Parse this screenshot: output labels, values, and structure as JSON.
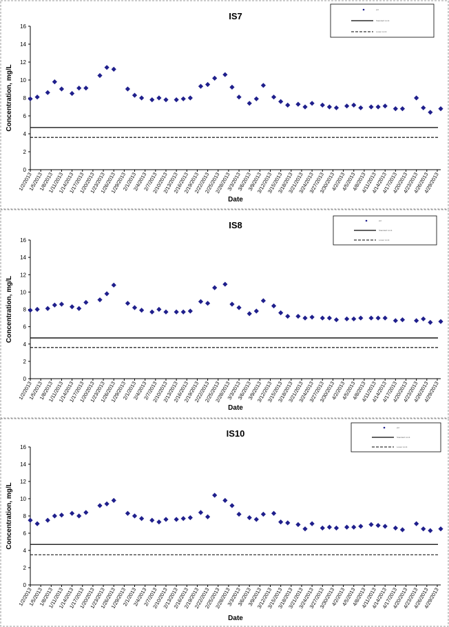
{
  "colors": {
    "marker": "#1f1f8c",
    "axis": "#000000",
    "border": "#9a9a9a"
  },
  "chart_data": [
    {
      "type": "scatter",
      "title": "IS7",
      "xlabel": "Date",
      "ylabel": "Concentration, mg/L",
      "ylim": [
        0,
        16
      ],
      "yticks": [
        "0",
        "2",
        "4",
        "6",
        "8",
        "10",
        "12",
        "14",
        "16"
      ],
      "grid": false,
      "legend_position": "top-right",
      "legend_entries": [
        "pH",
        "Standard Limit",
        "Lower Limit"
      ],
      "xtick_labels": [
        "1/2/2013",
        "1/5/2013",
        "1/8/2013",
        "1/11/2013",
        "1/14/2013",
        "1/17/2013",
        "1/20/2013",
        "1/23/2013",
        "1/26/2013",
        "1/29/2013",
        "2/1/2013",
        "2/4/2013",
        "2/7/2013",
        "2/10/2013",
        "2/13/2013",
        "2/16/2013",
        "2/19/2013",
        "2/22/2013",
        "2/25/2013",
        "2/28/2013",
        "3/3/2013",
        "3/6/2013",
        "3/9/2013",
        "3/12/2013",
        "3/15/2013",
        "3/18/2013",
        "3/21/2013",
        "3/24/2013",
        "3/27/2013",
        "3/30/2013",
        "4/2/2013",
        "4/5/2013",
        "4/8/2013",
        "4/11/2013",
        "4/14/2013",
        "4/17/2013",
        "4/20/2013",
        "4/23/2013",
        "4/26/2013",
        "4/29/2013"
      ],
      "x": [
        "1/2/2013",
        "1/4/2013",
        "1/7/2013",
        "1/9/2013",
        "1/11/2013",
        "1/14/2013",
        "1/16/2013",
        "1/18/2013",
        "1/22/2013",
        "1/24/2013",
        "1/26/2013",
        "1/30/2013",
        "2/1/2013",
        "2/3/2013",
        "2/6/2013",
        "2/8/2013",
        "2/10/2013",
        "2/13/2013",
        "2/15/2013",
        "2/17/2013",
        "2/20/2013",
        "2/22/2013",
        "2/24/2013",
        "2/27/2013",
        "3/1/2013",
        "3/3/2013",
        "3/6/2013",
        "3/8/2013",
        "3/10/2013",
        "3/13/2013",
        "3/15/2013",
        "3/17/2013",
        "3/20/2013",
        "3/22/2013",
        "3/24/2013",
        "3/27/2013",
        "3/29/2013",
        "3/31/2013",
        "4/3/2013",
        "4/5/2013",
        "4/7/2013",
        "4/10/2013",
        "4/12/2013",
        "4/14/2013",
        "4/17/2013",
        "4/19/2013",
        "4/23/2013",
        "4/25/2013",
        "4/27/2013",
        "4/30/2013"
      ],
      "series": [
        {
          "values": [
            7.9,
            8.1,
            8.6,
            9.8,
            9.0,
            8.5,
            9.1,
            9.1,
            10.5,
            11.4,
            11.2,
            9.0,
            8.3,
            8.0,
            7.8,
            8.0,
            7.8,
            7.8,
            7.9,
            8.0,
            9.3,
            9.5,
            10.2,
            10.6,
            9.2,
            8.1,
            7.4,
            7.9,
            9.4,
            8.1,
            7.6,
            7.2,
            7.3,
            7.0,
            7.4,
            7.2,
            7.0,
            6.9,
            7.1,
            7.2,
            6.9,
            7.0,
            7.0,
            7.1,
            6.8,
            6.8,
            8.0,
            6.9,
            6.4,
            6.8
          ]
        }
      ],
      "hlines": [
        {
          "value": 4.7,
          "style": "solid"
        },
        {
          "value": 3.6,
          "style": "dashed"
        }
      ]
    },
    {
      "type": "scatter",
      "title": "IS8",
      "xlabel": "Date",
      "ylabel": "Concentration, mg/L",
      "ylim": [
        0,
        16
      ],
      "yticks": [
        "0",
        "2",
        "4",
        "6",
        "8",
        "10",
        "12",
        "14",
        "16"
      ],
      "grid": false,
      "legend_position": "top-right",
      "legend_entries": [
        "pH",
        "Standard Limit",
        "Lower Limit"
      ],
      "xtick_labels": [
        "1/2/2013",
        "1/5/2013",
        "1/8/2013",
        "1/11/2013",
        "1/14/2013",
        "1/17/2013",
        "1/20/2013",
        "1/23/2013",
        "1/26/2013",
        "1/29/2013",
        "2/1/2013",
        "2/4/2013",
        "2/7/2013",
        "2/10/2013",
        "2/13/2013",
        "2/16/2013",
        "2/19/2013",
        "2/22/2013",
        "2/25/2013",
        "2/28/2013",
        "3/3/2013",
        "3/6/2013",
        "3/9/2013",
        "3/12/2013",
        "3/15/2013",
        "3/18/2013",
        "3/21/2013",
        "3/24/2013",
        "3/27/2013",
        "3/30/2013",
        "4/2/2013",
        "4/5/2013",
        "4/8/2013",
        "4/11/2013",
        "4/14/2013",
        "4/17/2013",
        "4/20/2013",
        "4/23/2013",
        "4/26/2013",
        "4/29/2013"
      ],
      "x": [
        "1/2/2013",
        "1/4/2013",
        "1/7/2013",
        "1/9/2013",
        "1/11/2013",
        "1/14/2013",
        "1/16/2013",
        "1/18/2013",
        "1/22/2013",
        "1/24/2013",
        "1/26/2013",
        "1/30/2013",
        "2/1/2013",
        "2/3/2013",
        "2/6/2013",
        "2/8/2013",
        "2/10/2013",
        "2/13/2013",
        "2/15/2013",
        "2/17/2013",
        "2/20/2013",
        "2/22/2013",
        "2/24/2013",
        "2/27/2013",
        "3/1/2013",
        "3/3/2013",
        "3/6/2013",
        "3/8/2013",
        "3/10/2013",
        "3/13/2013",
        "3/15/2013",
        "3/17/2013",
        "3/20/2013",
        "3/22/2013",
        "3/24/2013",
        "3/27/2013",
        "3/29/2013",
        "3/31/2013",
        "4/3/2013",
        "4/5/2013",
        "4/7/2013",
        "4/10/2013",
        "4/12/2013",
        "4/14/2013",
        "4/17/2013",
        "4/19/2013",
        "4/23/2013",
        "4/25/2013",
        "4/27/2013",
        "4/30/2013"
      ],
      "series": [
        {
          "values": [
            7.9,
            8.0,
            8.1,
            8.5,
            8.6,
            8.3,
            8.1,
            8.8,
            9.1,
            9.8,
            10.8,
            8.7,
            8.2,
            7.9,
            7.7,
            8.0,
            7.7,
            7.7,
            7.7,
            7.8,
            8.9,
            8.7,
            10.5,
            10.9,
            8.6,
            8.2,
            7.5,
            7.8,
            9.0,
            8.4,
            7.6,
            7.2,
            7.2,
            7.0,
            7.1,
            7.0,
            7.0,
            6.8,
            6.9,
            6.9,
            7.0,
            7.0,
            7.0,
            7.0,
            6.7,
            6.8,
            6.7,
            6.9,
            6.5,
            6.6
          ]
        }
      ],
      "hlines": [
        {
          "value": 4.7,
          "style": "solid"
        },
        {
          "value": 3.6,
          "style": "dashed"
        }
      ]
    },
    {
      "type": "scatter",
      "title": "IS10",
      "xlabel": "Date",
      "ylabel": "Concentration, mg/L",
      "ylim": [
        0,
        16
      ],
      "yticks": [
        "0",
        "2",
        "4",
        "6",
        "8",
        "10",
        "12",
        "14",
        "16"
      ],
      "grid": false,
      "legend_position": "top-right",
      "legend_entries": [
        "pH",
        "Standard Limit",
        "Lower Limit"
      ],
      "xtick_labels": [
        "1/2/2013",
        "1/5/2013",
        "1/8/2013",
        "1/11/2013",
        "1/14/2013",
        "1/17/2013",
        "1/20/2013",
        "1/23/2013",
        "1/26/2013",
        "1/29/2013",
        "2/1/2013",
        "2/4/2013",
        "2/7/2013",
        "2/10/2013",
        "2/13/2013",
        "2/16/2013",
        "2/19/2013",
        "2/22/2013",
        "2/25/2013",
        "2/28/2013",
        "3/3/2013",
        "3/6/2013",
        "3/9/2013",
        "3/12/2013",
        "3/15/2013",
        "3/18/2013",
        "3/21/2013",
        "3/24/2013",
        "3/27/2013",
        "3/30/2013",
        "4/2/2013",
        "4/5/2013",
        "4/8/2013",
        "4/11/2013",
        "4/14/2013",
        "4/17/2013",
        "4/20/2013",
        "4/23/2013",
        "4/26/2013",
        "4/29/2013"
      ],
      "x": [
        "1/2/2013",
        "1/4/2013",
        "1/7/2013",
        "1/9/2013",
        "1/11/2013",
        "1/14/2013",
        "1/16/2013",
        "1/18/2013",
        "1/22/2013",
        "1/24/2013",
        "1/26/2013",
        "1/30/2013",
        "2/1/2013",
        "2/3/2013",
        "2/6/2013",
        "2/8/2013",
        "2/10/2013",
        "2/13/2013",
        "2/15/2013",
        "2/17/2013",
        "2/20/2013",
        "2/22/2013",
        "2/24/2013",
        "2/27/2013",
        "3/1/2013",
        "3/3/2013",
        "3/6/2013",
        "3/8/2013",
        "3/10/2013",
        "3/13/2013",
        "3/15/2013",
        "3/17/2013",
        "3/20/2013",
        "3/22/2013",
        "3/24/2013",
        "3/27/2013",
        "3/29/2013",
        "3/31/2013",
        "4/3/2013",
        "4/5/2013",
        "4/7/2013",
        "4/10/2013",
        "4/12/2013",
        "4/14/2013",
        "4/17/2013",
        "4/19/2013",
        "4/23/2013",
        "4/25/2013",
        "4/27/2013",
        "4/30/2013"
      ],
      "series": [
        {
          "values": [
            7.5,
            7.1,
            7.5,
            8.0,
            8.1,
            8.3,
            8.0,
            8.4,
            9.2,
            9.4,
            9.8,
            8.3,
            8.0,
            7.7,
            7.5,
            7.3,
            7.6,
            7.6,
            7.7,
            7.8,
            8.4,
            7.9,
            10.4,
            9.8,
            9.2,
            8.2,
            7.8,
            7.6,
            8.2,
            8.3,
            7.3,
            7.2,
            7.0,
            6.5,
            7.1,
            6.6,
            6.7,
            6.6,
            6.7,
            6.7,
            6.8,
            7.0,
            6.9,
            6.8,
            6.6,
            6.4,
            7.1,
            6.5,
            6.3,
            6.5
          ]
        }
      ],
      "hlines": [
        {
          "value": 4.7,
          "style": "solid"
        },
        {
          "value": 3.5,
          "style": "dashed"
        }
      ]
    }
  ]
}
